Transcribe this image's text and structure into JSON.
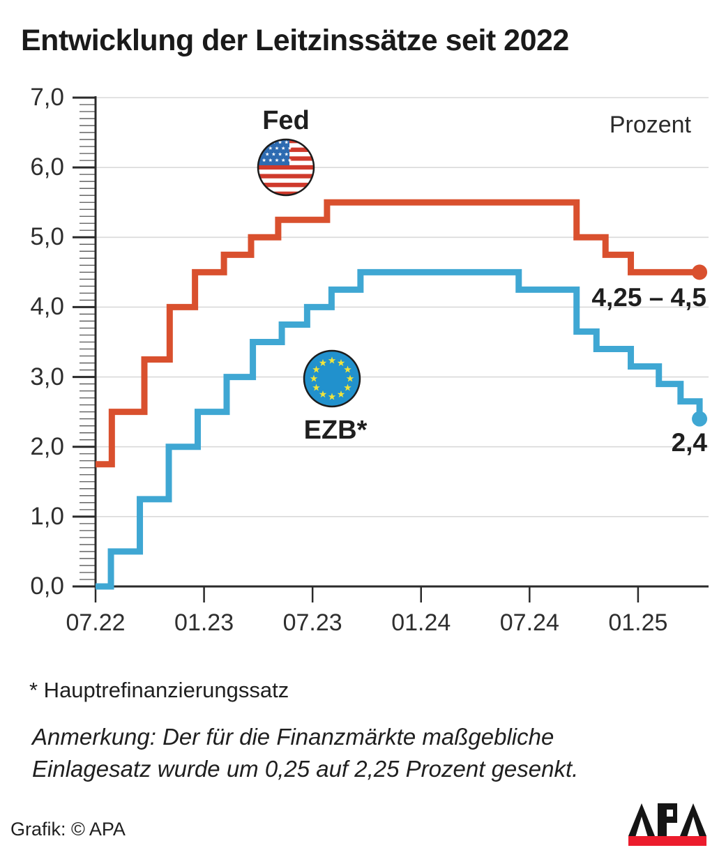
{
  "title": "Entwicklung der Leitzinssätze seit 2022",
  "unit_label": "Prozent",
  "footnote": "* Hauptrefinanzierungssatz",
  "note_line1": "Anmerkung: Der für die Finanzmärkte maßgebliche",
  "note_line2": "Einlagesatz wurde um 0,25 auf 2,25 Prozent gesenkt.",
  "credit": "Grafik: © APA",
  "logo_text": "APA",
  "colors": {
    "fed_line": "#d9502e",
    "ezb_line": "#3fa7d3",
    "grid": "#d9d9d9",
    "axis": "#2a2a2a",
    "minor_tick": "#555555",
    "eu_flag_blue": "#2191cd",
    "eu_star_yellow": "#f1e43b",
    "us_canton_blue": "#2d6bb1",
    "us_stripe_red": "#cf3a2c",
    "logo_red": "#ec1c2d"
  },
  "chart_data": {
    "type": "line",
    "subtype": "step",
    "title": "Entwicklung der Leitzinssätze seit 2022",
    "ylabel": "Prozent",
    "ylim": [
      0,
      7
    ],
    "grid": "horizontal",
    "y_ticks": [
      {
        "v": 0,
        "label": "0,0"
      },
      {
        "v": 1,
        "label": "1,0"
      },
      {
        "v": 2,
        "label": "2,0"
      },
      {
        "v": 3,
        "label": "3,0"
      },
      {
        "v": 4,
        "label": "4,0"
      },
      {
        "v": 5,
        "label": "5,0"
      },
      {
        "v": 6,
        "label": "6,0"
      },
      {
        "v": 7,
        "label": "7,0"
      }
    ],
    "y_minor_tick_step": 0.1,
    "x_ticks": [
      {
        "m": 0,
        "label": "07.22"
      },
      {
        "m": 6,
        "label": "01.23"
      },
      {
        "m": 12,
        "label": "07.23"
      },
      {
        "m": 18,
        "label": "01.24"
      },
      {
        "m": 24,
        "label": "07.24"
      },
      {
        "m": 30,
        "label": "01.25"
      }
    ],
    "x_unit": "months_since_2022-07",
    "x_range": [
      0,
      33.4
    ],
    "series": [
      {
        "name": "Fed",
        "flag": "us",
        "color": "#d9502e",
        "end_label": "4,25 – 4,5",
        "end_value": 4.5,
        "steps": [
          [
            0,
            1.75
          ],
          [
            0.9,
            2.5
          ],
          [
            2.7,
            3.25
          ],
          [
            4.1,
            4.0
          ],
          [
            5.5,
            4.5
          ],
          [
            7.1,
            4.75
          ],
          [
            8.6,
            5.0
          ],
          [
            10.1,
            5.25
          ],
          [
            12.8,
            5.5
          ],
          [
            26.6,
            5.0
          ],
          [
            28.2,
            4.75
          ],
          [
            29.6,
            4.5
          ]
        ]
      },
      {
        "name": "EZB*",
        "flag": "eu",
        "color": "#3fa7d3",
        "end_label": "2,4",
        "end_value": 2.4,
        "steps": [
          [
            0,
            0.0
          ],
          [
            0.85,
            0.5
          ],
          [
            2.45,
            1.25
          ],
          [
            4.05,
            2.0
          ],
          [
            5.65,
            2.5
          ],
          [
            7.25,
            3.0
          ],
          [
            8.7,
            3.5
          ],
          [
            10.3,
            3.75
          ],
          [
            11.7,
            4.0
          ],
          [
            13.05,
            4.25
          ],
          [
            14.65,
            4.5
          ],
          [
            23.4,
            4.25
          ],
          [
            26.6,
            3.65
          ],
          [
            27.7,
            3.4
          ],
          [
            29.6,
            3.15
          ],
          [
            31.15,
            2.9
          ],
          [
            32.35,
            2.65
          ],
          [
            33.4,
            2.4
          ]
        ]
      }
    ]
  }
}
